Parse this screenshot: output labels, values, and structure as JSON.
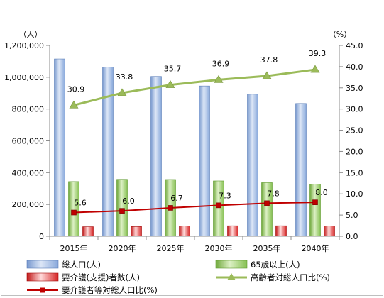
{
  "chart_data": {
    "type": "bar",
    "categories": [
      "2015年",
      "2020年",
      "2025年",
      "2030年",
      "2035年",
      "2040年"
    ],
    "y_left": {
      "unit": "（人）",
      "min": 0,
      "max": 1200000,
      "step": 200000,
      "tick_labels": [
        "0",
        "200,000",
        "400,000",
        "600,000",
        "800,000",
        "1,000,000",
        "1,200,000"
      ]
    },
    "y_right": {
      "unit": "（%）",
      "min": 0,
      "max": 45,
      "step": 5,
      "tick_labels": [
        "0.0",
        "5.0",
        "10.0",
        "15.0",
        "20.0",
        "25.0",
        "30.0",
        "35.0",
        "40.0",
        "45.0"
      ]
    },
    "grid": false,
    "legend_position": "bottom",
    "series": [
      {
        "name": "総人口(人)",
        "kind": "bar",
        "axis": "left",
        "color": "#95b3e0",
        "values": [
          1115000,
          1063000,
          1005000,
          945000,
          893000,
          835000
        ]
      },
      {
        "name": "65歳以上(人)",
        "kind": "bar",
        "axis": "left",
        "color": "#9ccc65",
        "values": [
          344000,
          358000,
          357000,
          348000,
          337000,
          327000
        ]
      },
      {
        "name": "要介護(支援)者数(人)",
        "kind": "bar",
        "axis": "left",
        "color": "#e32b2b",
        "values": [
          60000,
          61000,
          64000,
          66000,
          66000,
          64000
        ]
      },
      {
        "name": "高齢者対総人口比(%)",
        "kind": "line",
        "axis": "right",
        "color": "#9bbb59",
        "marker": "triangle",
        "values": [
          30.9,
          33.8,
          35.7,
          36.9,
          37.8,
          39.3
        ],
        "labels": [
          "30.9",
          "33.8",
          "35.7",
          "36.9",
          "37.8",
          "39.3"
        ]
      },
      {
        "name": "要介護者等対総人口比(%)",
        "kind": "line",
        "axis": "right",
        "color": "#c00000",
        "marker": "square",
        "values": [
          5.6,
          6.0,
          6.7,
          7.3,
          7.8,
          8.0
        ],
        "labels": [
          "5.6",
          "6.0",
          "6.7",
          "7.3",
          "7.8",
          "8.0"
        ]
      }
    ]
  }
}
